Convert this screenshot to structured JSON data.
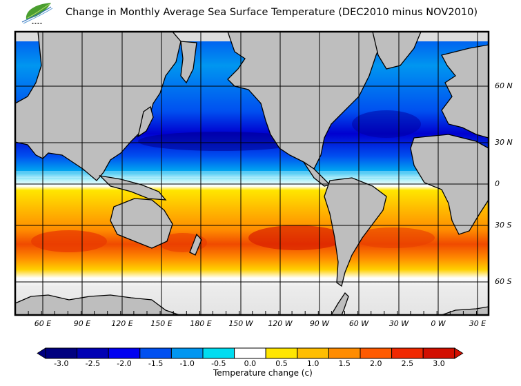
{
  "header": {
    "title": "Change in Monthly Average Sea Surface Temperature (DEC2010 minus NOV2010)",
    "logo": {
      "icon": "leaf-logo-icon",
      "colors": [
        "#3f9a2f",
        "#8cc63f",
        "#2c6fb5"
      ]
    }
  },
  "map": {
    "land_color": "#bebebe",
    "ice_color": "#dcdcdc",
    "ocean_no_change_color": "#ffffff",
    "longitude_labels": [
      "60 E",
      "90 E",
      "120 E",
      "150 E",
      "180 E",
      "150 W",
      "120 W",
      "90 W",
      "60 W",
      "30 W",
      "0 W",
      "30 E"
    ],
    "latitude_labels": [
      "60 N",
      "30 N",
      "0",
      "30 S",
      "60 S"
    ]
  },
  "colorbar": {
    "title": "Temperature change  (c)",
    "ticks": [
      "-3.0",
      "-2.5",
      "-2.0",
      "-1.5",
      "-1.0",
      "-0.5",
      "0.0",
      "0.5",
      "1.0",
      "1.5",
      "2.0",
      "2.5",
      "3.0"
    ],
    "bins": [
      {
        "color": "#000080"
      },
      {
        "color": "#0000b4"
      },
      {
        "color": "#0000f0"
      },
      {
        "color": "#0050f0"
      },
      {
        "color": "#0096f0"
      },
      {
        "color": "#00dcf0"
      },
      {
        "color": "#ffffff"
      },
      {
        "color": "#ffe600"
      },
      {
        "color": "#ffbe00"
      },
      {
        "color": "#ff8c00"
      },
      {
        "color": "#ff5a00"
      },
      {
        "color": "#f02800"
      },
      {
        "color": "#d20f00"
      }
    ],
    "under_color": "#000080",
    "over_color": "#d20f00"
  }
}
